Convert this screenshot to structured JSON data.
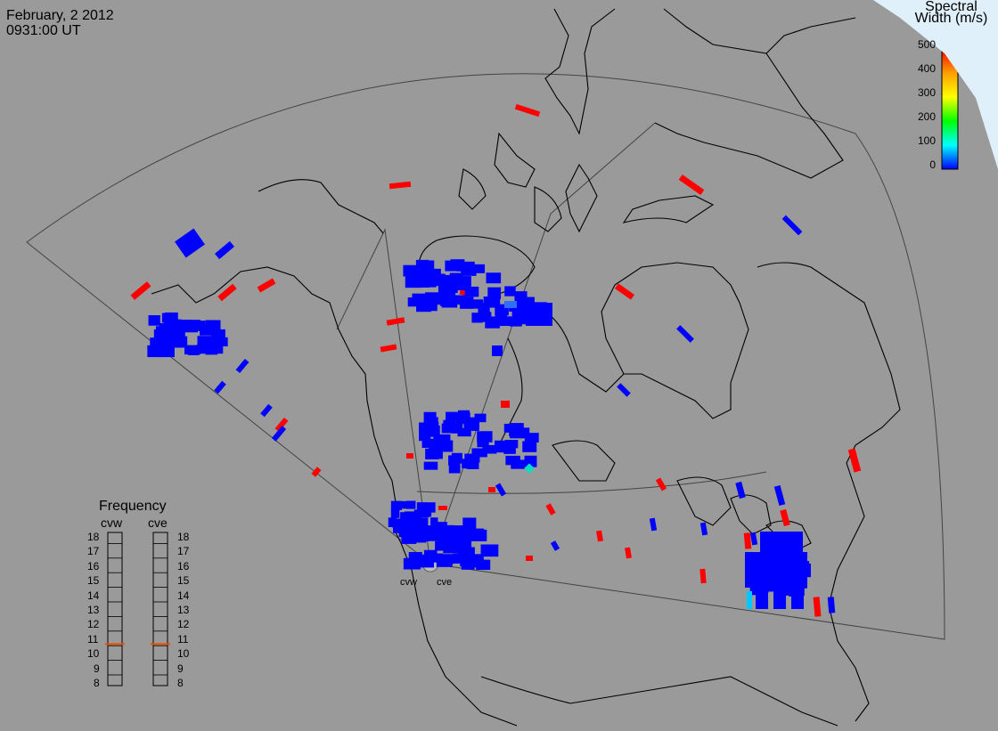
{
  "header": {
    "date": "February, 2 2012",
    "time": "0931:00 UT"
  },
  "colorscale": {
    "title_line1": "Spectral",
    "title_line2": "Width (m/s)",
    "ticks": [
      "500",
      "400",
      "300",
      "200",
      "100",
      "0"
    ],
    "colors": [
      "#ff0000",
      "#ffa000",
      "#ffff00",
      "#00ff00",
      "#00ffff",
      "#0000ff"
    ]
  },
  "frequency_panel": {
    "title": "Frequency",
    "radars": [
      "cvw",
      "cve"
    ],
    "levels": [
      "18",
      "17",
      "16",
      "15",
      "14",
      "13",
      "12",
      "11",
      "10",
      "9",
      "8"
    ],
    "marker_frequency_mhz": 10.6,
    "marker_color": "#e85000"
  },
  "radar_sites": {
    "west": "cvw",
    "east": "cve"
  },
  "colors": {
    "background": "#9a9a9a",
    "high_width": "#ff0000",
    "low_width": "#0000ff",
    "corner": "#dff0fb"
  }
}
